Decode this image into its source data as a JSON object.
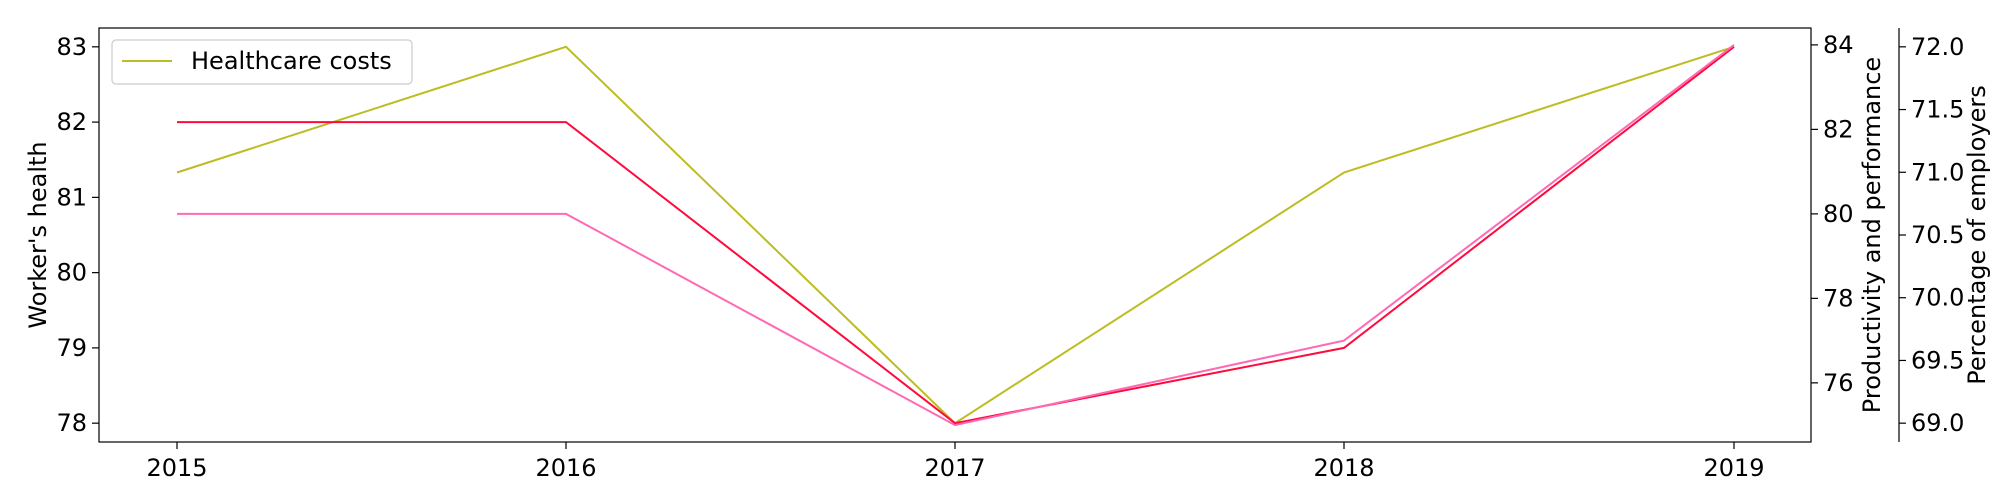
{
  "chart_data": {
    "type": "line",
    "x": [
      "2015",
      "2016",
      "2017",
      "2018",
      "2019"
    ],
    "axes": {
      "left": {
        "label": "Worker's health",
        "ylim": [
          77.75,
          83.25
        ],
        "ticks": [
          "78",
          "79",
          "80",
          "81",
          "82",
          "83"
        ]
      },
      "right1": {
        "label": "Productivity and performance",
        "ylim": [
          74.6,
          84.4
        ],
        "ticks": [
          "76",
          "78",
          "80",
          "82",
          "84"
        ]
      },
      "right2": {
        "label": "Percentage of employers",
        "ylim": [
          68.85,
          72.15
        ],
        "ticks": [
          "69.0",
          "69.5",
          "70.0",
          "70.5",
          "71.0",
          "71.5",
          "72.0"
        ]
      }
    },
    "series": [
      {
        "name": "Healthcare costs",
        "axis": "left",
        "color": "#bcbd22",
        "values": [
          81.33,
          83,
          78,
          81.33,
          83
        ]
      },
      {
        "axis": "left",
        "color": "#ff0a3c",
        "values": [
          82,
          82,
          78,
          79,
          83
        ]
      },
      {
        "axis": "right1",
        "color": "#ff69b4",
        "values": [
          80,
          80,
          75,
          77,
          84
        ]
      }
    ],
    "legend": {
      "position": "upper-left",
      "entries": [
        "Healthcare costs"
      ]
    },
    "grid": false
  }
}
